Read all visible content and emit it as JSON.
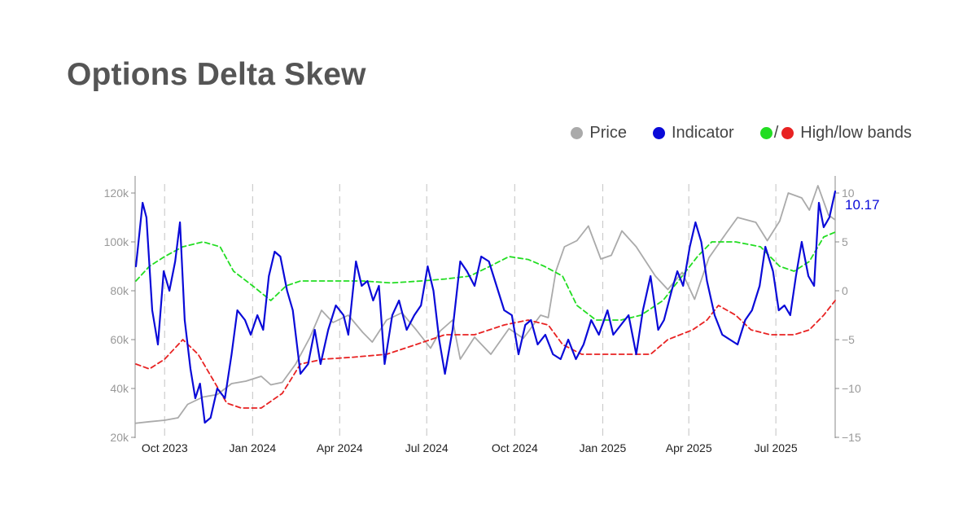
{
  "title": "Options Delta Skew",
  "legend": {
    "price_label": "Price",
    "indicator_label": "Indicator",
    "bands_label": "High/low bands",
    "bands_separator": "/"
  },
  "colors": {
    "price": "#aaaaaa",
    "indicator": "#0a0ad8",
    "high_band": "#22dd22",
    "low_band": "#e82222",
    "grid": "#cccccc",
    "axis": "#888888"
  },
  "chart_data": {
    "type": "line",
    "title": "Options Delta Skew",
    "x_tick_labels": [
      "Oct 2023",
      "Jan 2024",
      "Apr 2024",
      "Jul 2024",
      "Oct 2024",
      "Jan 2025",
      "Apr 2025",
      "Jul 2025"
    ],
    "x_range": [
      "2023-09-01",
      "2025-09-01"
    ],
    "grid": "vertical dashed lines at x tick dates",
    "y_left": {
      "range": [
        20000,
        120000
      ],
      "tick_labels": [
        "20k",
        "40k",
        "60k",
        "80k",
        "100k",
        "120k"
      ],
      "series": "Price"
    },
    "y_right": {
      "range": [
        -15,
        10
      ],
      "tick_labels": [
        "−15",
        "−10",
        "−5",
        "0",
        "5",
        "10"
      ],
      "series": [
        "Indicator",
        "High band",
        "Low band"
      ]
    },
    "last_value_label": "10.17",
    "series": [
      {
        "name": "Price",
        "axis": "left",
        "points": [
          [
            "2023-09-01",
            25800
          ],
          [
            "2023-09-15",
            26400
          ],
          [
            "2023-10-01",
            27000
          ],
          [
            "2023-10-15",
            28000
          ],
          [
            "2023-10-25",
            33500
          ],
          [
            "2023-11-10",
            36500
          ],
          [
            "2023-11-25",
            37500
          ],
          [
            "2023-12-10",
            42000
          ],
          [
            "2023-12-25",
            43000
          ],
          [
            "2024-01-10",
            45000
          ],
          [
            "2024-01-20",
            41500
          ],
          [
            "2024-02-01",
            42500
          ],
          [
            "2024-02-15",
            50000
          ],
          [
            "2024-03-01",
            61000
          ],
          [
            "2024-03-13",
            72000
          ],
          [
            "2024-03-25",
            67000
          ],
          [
            "2024-04-10",
            70000
          ],
          [
            "2024-04-25",
            63000
          ],
          [
            "2024-05-05",
            59000
          ],
          [
            "2024-05-20",
            68000
          ],
          [
            "2024-06-05",
            71000
          ],
          [
            "2024-06-20",
            64000
          ],
          [
            "2024-07-05",
            56500
          ],
          [
            "2024-07-15",
            63500
          ],
          [
            "2024-07-28",
            68000
          ],
          [
            "2024-08-05",
            52000
          ],
          [
            "2024-08-20",
            61000
          ],
          [
            "2024-09-06",
            54000
          ],
          [
            "2024-09-25",
            64500
          ],
          [
            "2024-10-10",
            60500
          ],
          [
            "2024-10-28",
            70000
          ],
          [
            "2024-11-05",
            69000
          ],
          [
            "2024-11-13",
            88000
          ],
          [
            "2024-11-22",
            98000
          ],
          [
            "2024-12-05",
            100500
          ],
          [
            "2024-12-17",
            106500
          ],
          [
            "2024-12-30",
            93000
          ],
          [
            "2025-01-10",
            94500
          ],
          [
            "2025-01-21",
            104500
          ],
          [
            "2025-02-05",
            98000
          ],
          [
            "2025-02-25",
            86000
          ],
          [
            "2025-03-10",
            80500
          ],
          [
            "2025-03-25",
            87500
          ],
          [
            "2025-04-07",
            76500
          ],
          [
            "2025-04-22",
            93500
          ],
          [
            "2025-05-10",
            103500
          ],
          [
            "2025-05-22",
            110000
          ],
          [
            "2025-06-10",
            108000
          ],
          [
            "2025-06-22",
            100500
          ],
          [
            "2025-07-05",
            108500
          ],
          [
            "2025-07-14",
            120000
          ],
          [
            "2025-07-28",
            118000
          ],
          [
            "2025-08-05",
            113000
          ],
          [
            "2025-08-14",
            123000
          ],
          [
            "2025-08-25",
            111000
          ],
          [
            "2025-09-01",
            109000
          ]
        ]
      },
      {
        "name": "Indicator",
        "axis": "right",
        "points": [
          [
            "2023-09-01",
            2.5
          ],
          [
            "2023-09-08",
            9.0
          ],
          [
            "2023-09-12",
            7.5
          ],
          [
            "2023-09-18",
            -2.0
          ],
          [
            "2023-09-24",
            -5.5
          ],
          [
            "2023-09-30",
            2.0
          ],
          [
            "2023-10-06",
            0.0
          ],
          [
            "2023-10-12",
            3.0
          ],
          [
            "2023-10-17",
            7.0
          ],
          [
            "2023-10-22",
            -3.0
          ],
          [
            "2023-10-28",
            -8.0
          ],
          [
            "2023-11-02",
            -11.0
          ],
          [
            "2023-11-07",
            -9.5
          ],
          [
            "2023-11-12",
            -13.5
          ],
          [
            "2023-11-18",
            -13.0
          ],
          [
            "2023-11-25",
            -10.0
          ],
          [
            "2023-12-03",
            -11.0
          ],
          [
            "2023-12-10",
            -6.5
          ],
          [
            "2023-12-16",
            -2.0
          ],
          [
            "2023-12-24",
            -3.0
          ],
          [
            "2023-12-30",
            -4.5
          ],
          [
            "2024-01-06",
            -2.5
          ],
          [
            "2024-01-12",
            -4.0
          ],
          [
            "2024-01-18",
            1.5
          ],
          [
            "2024-01-24",
            4.0
          ],
          [
            "2024-01-30",
            3.5
          ],
          [
            "2024-02-06",
            0.0
          ],
          [
            "2024-02-12",
            -2.0
          ],
          [
            "2024-02-20",
            -8.5
          ],
          [
            "2024-02-28",
            -7.5
          ],
          [
            "2024-03-06",
            -4.0
          ],
          [
            "2024-03-12",
            -7.5
          ],
          [
            "2024-03-20",
            -4.0
          ],
          [
            "2024-03-28",
            -1.5
          ],
          [
            "2024-04-05",
            -2.5
          ],
          [
            "2024-04-10",
            -4.5
          ],
          [
            "2024-04-18",
            3.0
          ],
          [
            "2024-04-24",
            0.5
          ],
          [
            "2024-04-30",
            1.0
          ],
          [
            "2024-05-06",
            -1.0
          ],
          [
            "2024-05-12",
            0.5
          ],
          [
            "2024-05-18",
            -7.5
          ],
          [
            "2024-05-26",
            -2.5
          ],
          [
            "2024-06-02",
            -1.0
          ],
          [
            "2024-06-10",
            -4.0
          ],
          [
            "2024-06-18",
            -2.5
          ],
          [
            "2024-06-25",
            -1.5
          ],
          [
            "2024-07-02",
            2.5
          ],
          [
            "2024-07-08",
            0.0
          ],
          [
            "2024-07-14",
            -5.0
          ],
          [
            "2024-07-20",
            -8.5
          ],
          [
            "2024-07-28",
            -4.0
          ],
          [
            "2024-08-05",
            3.0
          ],
          [
            "2024-08-12",
            2.0
          ],
          [
            "2024-08-20",
            0.5
          ],
          [
            "2024-08-27",
            3.5
          ],
          [
            "2024-09-04",
            3.0
          ],
          [
            "2024-09-12",
            0.5
          ],
          [
            "2024-09-20",
            -2.0
          ],
          [
            "2024-09-28",
            -2.5
          ],
          [
            "2024-10-05",
            -6.5
          ],
          [
            "2024-10-12",
            -3.5
          ],
          [
            "2024-10-18",
            -3.0
          ],
          [
            "2024-10-25",
            -5.5
          ],
          [
            "2024-11-02",
            -4.5
          ],
          [
            "2024-11-10",
            -6.5
          ],
          [
            "2024-11-18",
            -7.0
          ],
          [
            "2024-11-26",
            -5.0
          ],
          [
            "2024-12-04",
            -7.0
          ],
          [
            "2024-12-12",
            -5.5
          ],
          [
            "2024-12-20",
            -3.0
          ],
          [
            "2024-12-28",
            -4.5
          ],
          [
            "2025-01-06",
            -2.0
          ],
          [
            "2025-01-12",
            -4.5
          ],
          [
            "2025-01-20",
            -3.5
          ],
          [
            "2025-01-28",
            -2.5
          ],
          [
            "2025-02-05",
            -6.5
          ],
          [
            "2025-02-12",
            -2.0
          ],
          [
            "2025-02-20",
            1.5
          ],
          [
            "2025-02-28",
            -4.0
          ],
          [
            "2025-03-06",
            -3.0
          ],
          [
            "2025-03-14",
            0.0
          ],
          [
            "2025-03-20",
            2.0
          ],
          [
            "2025-03-26",
            0.5
          ],
          [
            "2025-04-02",
            4.5
          ],
          [
            "2025-04-08",
            7.0
          ],
          [
            "2025-04-14",
            5.0
          ],
          [
            "2025-04-20",
            1.0
          ],
          [
            "2025-04-28",
            -2.5
          ],
          [
            "2025-05-06",
            -4.5
          ],
          [
            "2025-05-14",
            -5.0
          ],
          [
            "2025-05-22",
            -5.5
          ],
          [
            "2025-05-30",
            -3.0
          ],
          [
            "2025-06-06",
            -2.0
          ],
          [
            "2025-06-14",
            0.5
          ],
          [
            "2025-06-20",
            4.5
          ],
          [
            "2025-06-28",
            2.0
          ],
          [
            "2025-07-04",
            -2.0
          ],
          [
            "2025-07-10",
            -1.5
          ],
          [
            "2025-07-16",
            -2.5
          ],
          [
            "2025-07-22",
            1.5
          ],
          [
            "2025-07-28",
            5.0
          ],
          [
            "2025-08-04",
            1.5
          ],
          [
            "2025-08-10",
            0.5
          ],
          [
            "2025-08-15",
            9.0
          ],
          [
            "2025-08-20",
            6.5
          ],
          [
            "2025-08-26",
            7.5
          ],
          [
            "2025-09-01",
            10.17
          ]
        ]
      },
      {
        "name": "High band",
        "axis": "right",
        "points": [
          [
            "2023-09-01",
            1.0
          ],
          [
            "2023-09-15",
            2.5
          ],
          [
            "2023-10-01",
            3.5
          ],
          [
            "2023-10-20",
            4.5
          ],
          [
            "2023-11-10",
            5.0
          ],
          [
            "2023-11-28",
            4.5
          ],
          [
            "2023-12-12",
            2.0
          ],
          [
            "2024-01-01",
            0.5
          ],
          [
            "2024-01-20",
            -1.0
          ],
          [
            "2024-02-05",
            0.5
          ],
          [
            "2024-02-20",
            1.0
          ],
          [
            "2024-03-25",
            1.0
          ],
          [
            "2024-04-25",
            1.0
          ],
          [
            "2024-05-25",
            0.8
          ],
          [
            "2024-06-25",
            1.0
          ],
          [
            "2024-07-20",
            1.2
          ],
          [
            "2024-08-15",
            1.5
          ],
          [
            "2024-09-05",
            2.5
          ],
          [
            "2024-09-25",
            3.5
          ],
          [
            "2024-10-15",
            3.2
          ],
          [
            "2024-11-01",
            2.5
          ],
          [
            "2024-11-20",
            1.5
          ],
          [
            "2024-12-05",
            -1.5
          ],
          [
            "2024-12-25",
            -3.0
          ],
          [
            "2025-01-20",
            -3.0
          ],
          [
            "2025-02-10",
            -2.5
          ],
          [
            "2025-03-05",
            -1.0
          ],
          [
            "2025-03-25",
            1.5
          ],
          [
            "2025-04-10",
            3.5
          ],
          [
            "2025-04-25",
            5.0
          ],
          [
            "2025-05-20",
            5.0
          ],
          [
            "2025-06-15",
            4.5
          ],
          [
            "2025-07-05",
            2.5
          ],
          [
            "2025-07-20",
            2.0
          ],
          [
            "2025-08-05",
            3.0
          ],
          [
            "2025-08-20",
            5.5
          ],
          [
            "2025-09-01",
            6.0
          ]
        ]
      },
      {
        "name": "Low band",
        "axis": "right",
        "points": [
          [
            "2023-09-01",
            -7.5
          ],
          [
            "2023-09-15",
            -8.0
          ],
          [
            "2023-10-01",
            -7.0
          ],
          [
            "2023-10-20",
            -5.0
          ],
          [
            "2023-11-05",
            -6.5
          ],
          [
            "2023-11-20",
            -9.0
          ],
          [
            "2023-12-05",
            -11.5
          ],
          [
            "2023-12-20",
            -12.0
          ],
          [
            "2024-01-10",
            -12.0
          ],
          [
            "2024-02-01",
            -10.5
          ],
          [
            "2024-02-20",
            -7.5
          ],
          [
            "2024-03-15",
            -7.0
          ],
          [
            "2024-04-15",
            -6.8
          ],
          [
            "2024-05-20",
            -6.5
          ],
          [
            "2024-06-20",
            -5.5
          ],
          [
            "2024-07-20",
            -4.5
          ],
          [
            "2024-08-20",
            -4.5
          ],
          [
            "2024-09-20",
            -3.5
          ],
          [
            "2024-10-15",
            -3.0
          ],
          [
            "2024-11-05",
            -3.5
          ],
          [
            "2024-11-20",
            -5.5
          ],
          [
            "2024-12-10",
            -6.5
          ],
          [
            "2025-01-15",
            -6.5
          ],
          [
            "2025-02-20",
            -6.5
          ],
          [
            "2025-03-10",
            -5.0
          ],
          [
            "2025-04-05",
            -4.0
          ],
          [
            "2025-04-20",
            -3.0
          ],
          [
            "2025-05-02",
            -1.5
          ],
          [
            "2025-05-20",
            -2.5
          ],
          [
            "2025-06-05",
            -4.0
          ],
          [
            "2025-06-25",
            -4.5
          ],
          [
            "2025-07-20",
            -4.5
          ],
          [
            "2025-08-05",
            -4.0
          ],
          [
            "2025-08-20",
            -2.5
          ],
          [
            "2025-09-01",
            -1.0
          ]
        ]
      }
    ]
  }
}
